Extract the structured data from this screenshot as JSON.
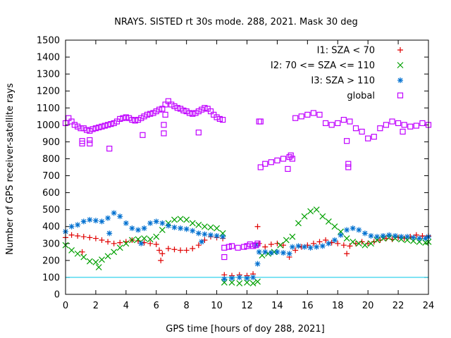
{
  "chart_data": {
    "type": "scatter",
    "title": "NRAYS. SISTED rt 30s mode. 288, 2021. Mask 30 deg",
    "xlabel": "GPS time [hours of doy 288, 2021]",
    "ylabel": "Number of GPS receiver-satellite rays",
    "xlim": [
      0,
      24
    ],
    "ylim": [
      0,
      1500
    ],
    "xticks": [
      0,
      2,
      4,
      6,
      8,
      10,
      12,
      14,
      16,
      18,
      20,
      22,
      24
    ],
    "yticks": [
      0,
      100,
      200,
      300,
      400,
      500,
      600,
      700,
      800,
      900,
      1000,
      1100,
      1200,
      1300,
      1400,
      1500
    ],
    "legend_position": "top-right",
    "reference_line": {
      "y": 100,
      "color": "#00c8e8"
    },
    "series": [
      {
        "name": "I1: SZA < 70",
        "marker": "+",
        "color": "#e00000",
        "points": [
          [
            0.0,
            335
          ],
          [
            0.4,
            350
          ],
          [
            0.8,
            345
          ],
          [
            1.2,
            340
          ],
          [
            1.6,
            335
          ],
          [
            2.0,
            330
          ],
          [
            2.4,
            320
          ],
          [
            2.8,
            310
          ],
          [
            3.2,
            300
          ],
          [
            3.6,
            305
          ],
          [
            4.0,
            310
          ],
          [
            4.4,
            320
          ],
          [
            4.8,
            315
          ],
          [
            5.2,
            305
          ],
          [
            5.6,
            300
          ],
          [
            6.0,
            295
          ],
          [
            6.2,
            260
          ],
          [
            6.4,
            240
          ],
          [
            6.8,
            270
          ],
          [
            7.2,
            265
          ],
          [
            7.6,
            260
          ],
          [
            8.0,
            260
          ],
          [
            8.4,
            270
          ],
          [
            8.8,
            290
          ],
          [
            9.2,
            320
          ],
          [
            9.6,
            340
          ],
          [
            10.0,
            335
          ],
          [
            10.4,
            330
          ],
          [
            10.5,
            115
          ],
          [
            11.0,
            110
          ],
          [
            11.5,
            115
          ],
          [
            12.0,
            110
          ],
          [
            12.4,
            120
          ],
          [
            12.7,
            400
          ],
          [
            12.8,
            300
          ],
          [
            13.2,
            280
          ],
          [
            13.6,
            295
          ],
          [
            14.0,
            300
          ],
          [
            14.4,
            290
          ],
          [
            14.8,
            220
          ],
          [
            15.2,
            260
          ],
          [
            15.6,
            280
          ],
          [
            16.0,
            290
          ],
          [
            16.4,
            300
          ],
          [
            16.8,
            310
          ],
          [
            17.2,
            320
          ],
          [
            17.6,
            305
          ],
          [
            18.0,
            300
          ],
          [
            18.4,
            290
          ],
          [
            18.6,
            240
          ],
          [
            18.8,
            285
          ],
          [
            19.2,
            300
          ],
          [
            19.6,
            310
          ],
          [
            20.0,
            300
          ],
          [
            20.4,
            310
          ],
          [
            20.8,
            320
          ],
          [
            21.2,
            330
          ],
          [
            21.6,
            325
          ],
          [
            22.0,
            335
          ],
          [
            22.4,
            330
          ],
          [
            22.8,
            340
          ],
          [
            23.2,
            350
          ],
          [
            23.6,
            345
          ],
          [
            24.0,
            345
          ],
          [
            1.1,
            250
          ],
          [
            6.3,
            200
          ]
        ]
      },
      {
        "name": "I2: 70 <= SZA <= 110",
        "marker": "x",
        "color": "#00a000",
        "points": [
          [
            0.0,
            290
          ],
          [
            0.4,
            260
          ],
          [
            0.8,
            240
          ],
          [
            1.2,
            220
          ],
          [
            1.6,
            195
          ],
          [
            2.0,
            190
          ],
          [
            2.2,
            160
          ],
          [
            2.4,
            205
          ],
          [
            2.8,
            225
          ],
          [
            3.2,
            250
          ],
          [
            3.6,
            275
          ],
          [
            4.0,
            300
          ],
          [
            4.4,
            320
          ],
          [
            4.8,
            325
          ],
          [
            5.2,
            330
          ],
          [
            5.6,
            325
          ],
          [
            6.0,
            340
          ],
          [
            6.4,
            380
          ],
          [
            6.8,
            420
          ],
          [
            7.2,
            440
          ],
          [
            7.6,
            445
          ],
          [
            8.0,
            440
          ],
          [
            8.4,
            420
          ],
          [
            8.8,
            410
          ],
          [
            9.2,
            400
          ],
          [
            9.6,
            395
          ],
          [
            10.0,
            390
          ],
          [
            10.4,
            360
          ],
          [
            10.5,
            70
          ],
          [
            11.0,
            70
          ],
          [
            11.5,
            65
          ],
          [
            12.0,
            70
          ],
          [
            12.4,
            65
          ],
          [
            12.7,
            75
          ],
          [
            13.0,
            230
          ],
          [
            13.4,
            240
          ],
          [
            13.8,
            250
          ],
          [
            14.2,
            290
          ],
          [
            14.6,
            320
          ],
          [
            15.0,
            340
          ],
          [
            15.4,
            420
          ],
          [
            15.8,
            460
          ],
          [
            16.2,
            490
          ],
          [
            16.6,
            500
          ],
          [
            17.0,
            460
          ],
          [
            17.4,
            430
          ],
          [
            17.8,
            400
          ],
          [
            18.2,
            370
          ],
          [
            18.6,
            330
          ],
          [
            19.0,
            310
          ],
          [
            19.4,
            300
          ],
          [
            19.8,
            290
          ],
          [
            20.2,
            300
          ],
          [
            20.6,
            320
          ],
          [
            21.0,
            330
          ],
          [
            21.4,
            335
          ],
          [
            21.8,
            330
          ],
          [
            22.2,
            325
          ],
          [
            22.6,
            320
          ],
          [
            23.0,
            315
          ],
          [
            23.4,
            310
          ],
          [
            23.8,
            305
          ],
          [
            24.0,
            310
          ]
        ]
      },
      {
        "name": "I3: SZA > 110",
        "marker": "*",
        "color": "#0070d0",
        "points": [
          [
            0.0,
            370
          ],
          [
            0.4,
            400
          ],
          [
            0.8,
            410
          ],
          [
            1.2,
            430
          ],
          [
            1.6,
            440
          ],
          [
            2.0,
            435
          ],
          [
            2.4,
            430
          ],
          [
            2.8,
            450
          ],
          [
            3.2,
            480
          ],
          [
            3.6,
            460
          ],
          [
            4.0,
            420
          ],
          [
            4.4,
            390
          ],
          [
            4.8,
            380
          ],
          [
            5.2,
            390
          ],
          [
            5.6,
            420
          ],
          [
            6.0,
            430
          ],
          [
            6.4,
            420
          ],
          [
            6.8,
            405
          ],
          [
            7.2,
            395
          ],
          [
            7.6,
            390
          ],
          [
            8.0,
            385
          ],
          [
            8.4,
            375
          ],
          [
            8.8,
            360
          ],
          [
            9.2,
            355
          ],
          [
            9.6,
            350
          ],
          [
            10.0,
            345
          ],
          [
            10.4,
            340
          ],
          [
            10.5,
            90
          ],
          [
            11.0,
            95
          ],
          [
            11.5,
            100
          ],
          [
            12.0,
            95
          ],
          [
            12.4,
            100
          ],
          [
            12.7,
            180
          ],
          [
            12.8,
            250
          ],
          [
            13.2,
            250
          ],
          [
            13.6,
            245
          ],
          [
            14.0,
            250
          ],
          [
            14.4,
            245
          ],
          [
            14.8,
            240
          ],
          [
            15.0,
            280
          ],
          [
            15.4,
            285
          ],
          [
            15.8,
            280
          ],
          [
            16.2,
            275
          ],
          [
            16.6,
            280
          ],
          [
            17.0,
            285
          ],
          [
            17.4,
            300
          ],
          [
            17.8,
            320
          ],
          [
            18.2,
            350
          ],
          [
            18.6,
            380
          ],
          [
            19.0,
            390
          ],
          [
            19.4,
            380
          ],
          [
            19.8,
            360
          ],
          [
            20.2,
            345
          ],
          [
            20.6,
            340
          ],
          [
            21.0,
            345
          ],
          [
            21.4,
            350
          ],
          [
            21.8,
            345
          ],
          [
            22.2,
            340
          ],
          [
            22.6,
            340
          ],
          [
            23.0,
            335
          ],
          [
            23.4,
            330
          ],
          [
            23.8,
            330
          ],
          [
            24.0,
            340
          ],
          [
            2.9,
            360
          ],
          [
            5.0,
            300
          ],
          [
            9.0,
            310
          ],
          [
            12.6,
            290
          ]
        ]
      },
      {
        "name": "global",
        "marker": "square",
        "color": "#c000ff",
        "points": [
          [
            0.0,
            1010
          ],
          [
            0.2,
            1040
          ],
          [
            0.4,
            1020
          ],
          [
            0.6,
            1000
          ],
          [
            0.8,
            990
          ],
          [
            1.0,
            980
          ],
          [
            1.2,
            980
          ],
          [
            1.4,
            970
          ],
          [
            1.6,
            965
          ],
          [
            1.8,
            975
          ],
          [
            2.0,
            980
          ],
          [
            2.2,
            985
          ],
          [
            2.4,
            990
          ],
          [
            2.6,
            995
          ],
          [
            2.8,
            1000
          ],
          [
            3.0,
            1005
          ],
          [
            3.2,
            1010
          ],
          [
            3.4,
            1020
          ],
          [
            3.6,
            1035
          ],
          [
            3.8,
            1040
          ],
          [
            4.0,
            1045
          ],
          [
            4.2,
            1040
          ],
          [
            4.4,
            1030
          ],
          [
            4.6,
            1025
          ],
          [
            4.8,
            1030
          ],
          [
            5.0,
            1040
          ],
          [
            5.2,
            1050
          ],
          [
            5.4,
            1060
          ],
          [
            5.6,
            1065
          ],
          [
            5.8,
            1070
          ],
          [
            6.0,
            1080
          ],
          [
            6.2,
            1090
          ],
          [
            6.4,
            1095
          ],
          [
            6.6,
            1120
          ],
          [
            6.8,
            1140
          ],
          [
            7.0,
            1120
          ],
          [
            7.2,
            1110
          ],
          [
            7.4,
            1100
          ],
          [
            7.6,
            1095
          ],
          [
            7.8,
            1085
          ],
          [
            8.0,
            1080
          ],
          [
            8.2,
            1070
          ],
          [
            8.4,
            1065
          ],
          [
            8.6,
            1070
          ],
          [
            8.8,
            1080
          ],
          [
            9.0,
            1090
          ],
          [
            9.2,
            1100
          ],
          [
            9.4,
            1095
          ],
          [
            9.6,
            1080
          ],
          [
            9.8,
            1060
          ],
          [
            10.0,
            1045
          ],
          [
            10.2,
            1035
          ],
          [
            10.4,
            1030
          ],
          [
            10.5,
            275
          ],
          [
            10.8,
            280
          ],
          [
            11.0,
            285
          ],
          [
            11.4,
            275
          ],
          [
            11.8,
            280
          ],
          [
            12.0,
            285
          ],
          [
            12.2,
            295
          ],
          [
            12.4,
            285
          ],
          [
            12.6,
            290
          ],
          [
            12.8,
            1020
          ],
          [
            12.9,
            750
          ],
          [
            13.2,
            770
          ],
          [
            13.6,
            780
          ],
          [
            14.0,
            790
          ],
          [
            14.4,
            800
          ],
          [
            14.8,
            810
          ],
          [
            15.0,
            800
          ],
          [
            15.2,
            1040
          ],
          [
            15.6,
            1050
          ],
          [
            16.0,
            1060
          ],
          [
            16.4,
            1070
          ],
          [
            16.8,
            1060
          ],
          [
            17.2,
            1010
          ],
          [
            17.6,
            1000
          ],
          [
            18.0,
            1010
          ],
          [
            18.4,
            1030
          ],
          [
            18.8,
            1020
          ],
          [
            19.2,
            980
          ],
          [
            19.6,
            960
          ],
          [
            20.0,
            920
          ],
          [
            20.4,
            930
          ],
          [
            20.8,
            980
          ],
          [
            21.2,
            1000
          ],
          [
            21.6,
            1020
          ],
          [
            22.0,
            1010
          ],
          [
            22.4,
            1000
          ],
          [
            22.8,
            990
          ],
          [
            23.2,
            995
          ],
          [
            23.6,
            1010
          ],
          [
            24.0,
            1000
          ],
          [
            1.1,
            890
          ],
          [
            1.1,
            905
          ],
          [
            1.6,
            890
          ],
          [
            1.6,
            910
          ],
          [
            2.9,
            860
          ],
          [
            5.1,
            940
          ],
          [
            6.5,
            1000
          ],
          [
            6.5,
            950
          ],
          [
            6.6,
            1060
          ],
          [
            8.8,
            955
          ],
          [
            10.5,
            220
          ],
          [
            12.7,
            300
          ],
          [
            12.9,
            1020
          ],
          [
            14.7,
            740
          ],
          [
            14.9,
            820
          ],
          [
            18.6,
            905
          ],
          [
            18.7,
            770
          ],
          [
            18.7,
            750
          ],
          [
            22.3,
            960
          ]
        ]
      }
    ]
  }
}
